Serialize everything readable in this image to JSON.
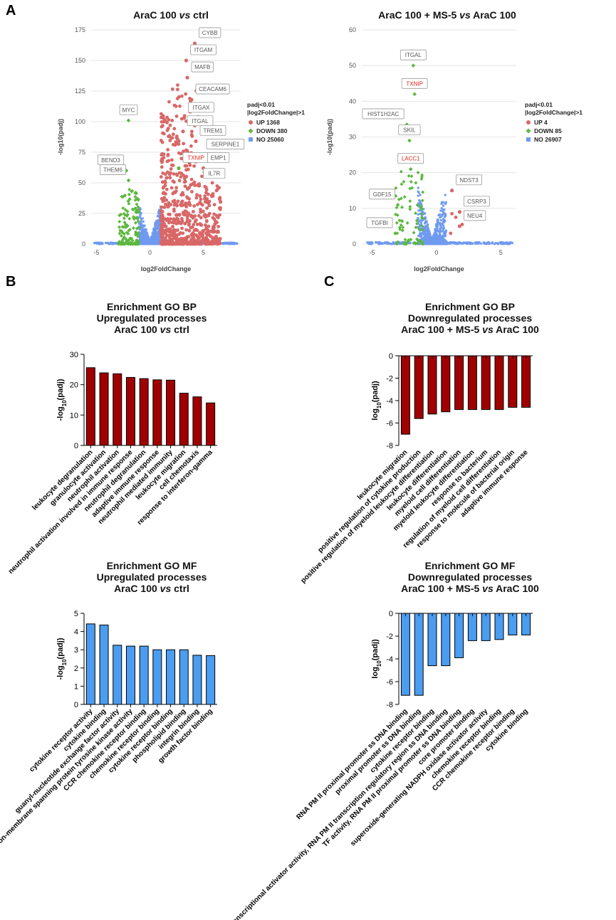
{
  "panel_labels": {
    "a": "A",
    "b": "B",
    "c": "C"
  },
  "colors": {
    "up": "#d96767",
    "down": "#5cb83d",
    "no": "#6f9af0",
    "dark_red": "#a00000",
    "blue_bar": "#4a9df0",
    "label_red": "#e0241a"
  },
  "chart_data": [
    {
      "id": "volcano1",
      "type": "scatter",
      "panel": "A",
      "title_parts": [
        "AraC 100 ",
        "vs",
        " ctrl"
      ],
      "xlabel": "log2FoldChange",
      "ylabel": "-log10(padj)",
      "xlim": [
        -5.5,
        8.5
      ],
      "ylim": [
        0,
        175
      ],
      "xticks": [
        -5,
        0,
        5
      ],
      "yticks": [
        0,
        25,
        50,
        75,
        100,
        125,
        150,
        175
      ],
      "legend": {
        "title1": "padj<0.01",
        "title2": "|log2FoldChange|>1",
        "items": [
          {
            "label": "UP 1368",
            "key": "up",
            "shape": "circle"
          },
          {
            "label": "DOWN 380",
            "key": "down",
            "shape": "diamond"
          },
          {
            "label": "NO 25060",
            "key": "no",
            "shape": "square"
          }
        ]
      },
      "genes": [
        {
          "name": "CYBB",
          "x": 4.2,
          "y": 164,
          "red": false
        },
        {
          "name": "ITGAM",
          "x": 3.4,
          "y": 150,
          "red": false
        },
        {
          "name": "MAFB",
          "x": 3.5,
          "y": 136,
          "red": false
        },
        {
          "name": "CEACAM6",
          "x": 3.9,
          "y": 118,
          "red": false
        },
        {
          "name": "ITGAX",
          "x": 3.2,
          "y": 103,
          "red": false
        },
        {
          "name": "ITGAL",
          "x": 3.1,
          "y": 92,
          "red": false
        },
        {
          "name": "TREM1",
          "x": 4.3,
          "y": 84,
          "red": false
        },
        {
          "name": "SERPINE1",
          "x": 4.9,
          "y": 73,
          "red": false
        },
        {
          "name": "TXNIP",
          "x": 2.7,
          "y": 62,
          "red": true
        },
        {
          "name": "EMP1",
          "x": 5.0,
          "y": 62,
          "red": false
        },
        {
          "name": "IL7R",
          "x": 4.6,
          "y": 49,
          "red": false
        },
        {
          "name": "MYC",
          "x": -2.0,
          "y": 101,
          "red": false
        },
        {
          "name": "BEND3",
          "x": -2.2,
          "y": 60,
          "red": false
        },
        {
          "name": "THEM6",
          "x": -2.0,
          "y": 52,
          "red": false
        }
      ]
    },
    {
      "id": "volcano2",
      "type": "scatter",
      "panel": "A",
      "title_parts": [
        "AraC 100 + MS-5 ",
        "vs",
        " AraC 100"
      ],
      "xlabel": "log2FoldChange",
      "ylabel": "-log10(padj)",
      "xlim": [
        -5.8,
        6.2
      ],
      "ylim": [
        0,
        60
      ],
      "xticks": [
        -5,
        0,
        5
      ],
      "yticks": [
        0,
        10,
        20,
        30,
        40,
        50,
        60
      ],
      "legend": {
        "title1": "padj<0.01",
        "title2": "|log2FoldChange|>1",
        "items": [
          {
            "label": "UP 4",
            "key": "up",
            "shape": "circle"
          },
          {
            "label": "DOWN 85",
            "key": "down",
            "shape": "diamond"
          },
          {
            "label": "NO 26907",
            "key": "no",
            "shape": "square"
          }
        ]
      },
      "genes": [
        {
          "name": "ITGAL",
          "x": -1.8,
          "y": 50,
          "red": false
        },
        {
          "name": "TXNIP",
          "x": -1.7,
          "y": 42,
          "red": true
        },
        {
          "name": "HIST1H2AC",
          "x": -2.3,
          "y": 33.5,
          "red": false
        },
        {
          "name": "SKIL",
          "x": -2.1,
          "y": 29,
          "red": false
        },
        {
          "name": "LACC1",
          "x": -2.0,
          "y": 21,
          "red": true
        },
        {
          "name": "NDST3",
          "x": 1.2,
          "y": 15,
          "red": false
        },
        {
          "name": "GDF15",
          "x": -3.0,
          "y": 11,
          "red": false
        },
        {
          "name": "CSRP3",
          "x": 1.8,
          "y": 9,
          "red": false
        },
        {
          "name": "TGFBI",
          "x": -3.2,
          "y": 3,
          "red": false
        },
        {
          "name": "NEU4",
          "x": 1.8,
          "y": 5,
          "red": false
        }
      ]
    },
    {
      "id": "bar_bp_up",
      "type": "bar",
      "panel": "B",
      "title_lines": [
        [
          "Enrichment GO BP"
        ],
        [
          "Upregulated processes"
        ],
        [
          "AraC 100 ",
          "vs",
          " ctrl"
        ]
      ],
      "ylabel_main": "-log",
      "ylabel_sub": "10",
      "ylabel_rest": "(padj)",
      "ylim": [
        0,
        30
      ],
      "yticks": [
        0,
        10,
        20,
        30
      ],
      "color_key": "dark_red",
      "categories": [
        "leukocyte degranulation",
        "granulocyte activation",
        "neutrophil activation",
        "neutrophil activation involved in immune response",
        "neutrophil degranulation",
        "adaptive immune response",
        "neutrophil mediated immunity",
        "leukocyte migration",
        "cell chemotaxis",
        "response to interferon-gamma"
      ],
      "values": [
        25.6,
        23.9,
        23.6,
        22.4,
        22.0,
        21.6,
        21.5,
        17.2,
        16.0,
        14.0
      ]
    },
    {
      "id": "bar_bp_down",
      "type": "bar",
      "panel": "C",
      "title_lines": [
        [
          "Enrichment GO BP"
        ],
        [
          "Downregulated processes"
        ],
        [
          "AraC 100 + MS-5 ",
          "vs",
          " AraC 100"
        ]
      ],
      "ylabel_main": "log",
      "ylabel_sub": "10",
      "ylabel_rest": "(padj)",
      "ylim": [
        -8,
        0
      ],
      "yticks": [
        0,
        -2,
        -4,
        -6,
        -8
      ],
      "color_key": "dark_red",
      "categories": [
        "leukocyte migration",
        "positive regulation of cytokine production",
        "positive regulation of myeloid leukocyte differentiation",
        "leukocyte differentiation",
        "myeloid cell differentiation",
        "myeloid leukocyte differentiation",
        "response to bacterium",
        "regulation of myeloid cell differentiation",
        "response to molecule of bacterial origin",
        "adaptive immune response"
      ],
      "values": [
        -7.0,
        -5.6,
        -5.2,
        -5.0,
        -4.8,
        -4.8,
        -4.8,
        -4.8,
        -4.6,
        -4.6
      ]
    },
    {
      "id": "bar_mf_up",
      "type": "bar",
      "panel": "B",
      "title_lines": [
        [
          "Enrichment GO MF"
        ],
        [
          "Upregulated processes"
        ],
        [
          "AraC 100 ",
          "vs",
          " ctrl"
        ]
      ],
      "ylabel_main": "-log",
      "ylabel_sub": "10",
      "ylabel_rest": "(padj)",
      "ylim": [
        0,
        5
      ],
      "yticks": [
        0,
        1,
        2,
        3,
        4,
        5
      ],
      "color_key": "blue_bar",
      "categories": [
        "cytokine receptor activity",
        "cytokine binding",
        "guanyl-nucleotide exchange factor activity",
        "non-membrane spanning protein tyrosine kinase activity",
        "CCR chemokine receptor binding",
        "chemokine receptor binding",
        "cytokine receptor binding",
        "phospholipid binding",
        "integrin binding",
        "growth factor binding"
      ],
      "values": [
        4.42,
        4.36,
        3.25,
        3.2,
        3.2,
        3.0,
        3.0,
        3.0,
        2.7,
        2.68
      ]
    },
    {
      "id": "bar_mf_down",
      "type": "bar",
      "panel": "C",
      "title_lines": [
        [
          "Enrichment GO MF"
        ],
        [
          "Downregulated processes"
        ],
        [
          "AraC 100 + MS-5 ",
          "vs",
          " AraC 100"
        ]
      ],
      "ylabel_main": "log",
      "ylabel_sub": "10",
      "ylabel_rest": "(padj)",
      "ylim": [
        -8,
        0
      ],
      "yticks": [
        0,
        -2,
        -4,
        -6,
        -8
      ],
      "color_key": "blue_bar",
      "categories": [
        "RNA PM II proximal promoter ss DNA binding",
        "proximal promoter ss DNA binding",
        "cytokine receptor binding",
        "transcriptional activator activity, RNA PM II transcription regulatory region ss DNA binding",
        "TF activity, RNA PM II proximal promoter ss DNA binding",
        "core promoter binding",
        "superoxide-generating NADPH oxidase activator activity",
        "chemokine receptor binding",
        "CCR chemokine receptor binding",
        "cytokine binding"
      ],
      "values": [
        -7.2,
        -7.2,
        -4.6,
        -4.6,
        -3.9,
        -2.4,
        -2.4,
        -2.3,
        -1.9,
        -1.9
      ]
    }
  ]
}
